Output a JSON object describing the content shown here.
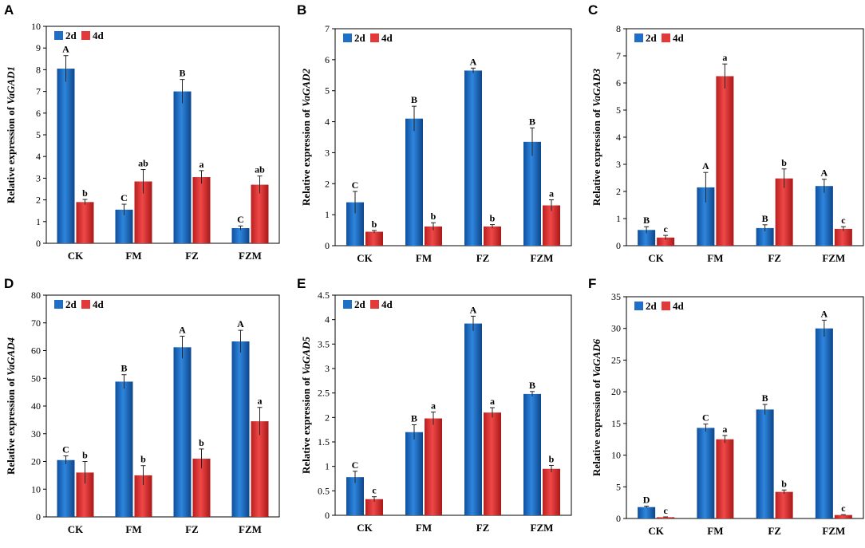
{
  "colors": {
    "series1": "#1f6fc4",
    "series2": "#e23a3a"
  },
  "chart_data": [
    {
      "type": "bar",
      "panel": "A",
      "ylabel_prefix": "Relative expression of ",
      "ylabel_gene": "VaGAD1",
      "ylim": [
        0,
        10
      ],
      "yticks": [
        "0",
        "1",
        "2",
        "3",
        "4",
        "5",
        "6",
        "7",
        "8",
        "9",
        "10"
      ],
      "categories": [
        "CK",
        "FM",
        "FZ",
        "FZM"
      ],
      "series": [
        {
          "name": "2d",
          "values": [
            8.05,
            1.55,
            7.0,
            0.7
          ],
          "errors": [
            0.6,
            0.25,
            0.55,
            0.1
          ],
          "labels": [
            "A",
            "C",
            "B",
            "C"
          ]
        },
        {
          "name": "4d",
          "values": [
            1.9,
            2.85,
            3.05,
            2.7
          ],
          "errors": [
            0.12,
            0.55,
            0.3,
            0.4
          ],
          "labels": [
            "b",
            "ab",
            "a",
            "ab"
          ]
        }
      ]
    },
    {
      "type": "bar",
      "panel": "B",
      "ylabel_prefix": "Relative expression of ",
      "ylabel_gene": "VaGAD2",
      "ylim": [
        0,
        7
      ],
      "yticks": [
        "0",
        "1",
        "2",
        "3",
        "4",
        "5",
        "6",
        "7"
      ],
      "categories": [
        "CK",
        "FM",
        "FZ",
        "FZM"
      ],
      "series": [
        {
          "name": "2d",
          "values": [
            1.4,
            4.1,
            5.65,
            3.35
          ],
          "errors": [
            0.35,
            0.4,
            0.08,
            0.45
          ],
          "labels": [
            "C",
            "B",
            "A",
            "B"
          ]
        },
        {
          "name": "4d",
          "values": [
            0.45,
            0.62,
            0.62,
            1.3
          ],
          "errors": [
            0.04,
            0.12,
            0.06,
            0.18
          ],
          "labels": [
            "b",
            "b",
            "b",
            "a"
          ]
        }
      ]
    },
    {
      "type": "bar",
      "panel": "C",
      "ylabel_prefix": "Relative expression of ",
      "ylabel_gene": "VaGAD3",
      "ylim": [
        0,
        8
      ],
      "yticks": [
        "0",
        "1",
        "2",
        "3",
        "4",
        "5",
        "6",
        "7",
        "8"
      ],
      "categories": [
        "CK",
        "FM",
        "FZ",
        "FZM"
      ],
      "series": [
        {
          "name": "2d",
          "values": [
            0.58,
            2.15,
            0.65,
            2.2
          ],
          "errors": [
            0.12,
            0.55,
            0.12,
            0.25
          ],
          "labels": [
            "B",
            "A",
            "B",
            "A"
          ]
        },
        {
          "name": "4d",
          "values": [
            0.3,
            6.25,
            2.48,
            0.62
          ],
          "errors": [
            0.08,
            0.45,
            0.35,
            0.08
          ],
          "labels": [
            "c",
            "a",
            "b",
            "c"
          ]
        }
      ]
    },
    {
      "type": "bar",
      "panel": "D",
      "ylabel_prefix": "Relative expression of ",
      "ylabel_gene": "VaGAD4",
      "ylim": [
        0,
        80
      ],
      "yticks": [
        "0",
        "10",
        "20",
        "30",
        "40",
        "50",
        "60",
        "70",
        "80"
      ],
      "categories": [
        "CK",
        "FM",
        "FZ",
        "FZM"
      ],
      "series": [
        {
          "name": "2d",
          "values": [
            20.5,
            48.8,
            61.2,
            63.3
          ],
          "errors": [
            1.5,
            2.5,
            4.0,
            4.0
          ],
          "labels": [
            "C",
            "B",
            "A",
            "A"
          ]
        },
        {
          "name": "4d",
          "values": [
            16.0,
            15.0,
            21.0,
            34.5
          ],
          "errors": [
            4.0,
            3.5,
            3.5,
            5.0
          ],
          "labels": [
            "b",
            "b",
            "b",
            "a"
          ]
        }
      ]
    },
    {
      "type": "bar",
      "panel": "E",
      "ylabel_prefix": "Relative expression of ",
      "ylabel_gene": "VaGAD5",
      "ylim": [
        0,
        4.5
      ],
      "yticks": [
        "0",
        "0.5",
        "1",
        "1.5",
        "2",
        "2.5",
        "3",
        "3.5",
        "4",
        "4.5"
      ],
      "categories": [
        "CK",
        "FM",
        "FZ",
        "FZM"
      ],
      "series": [
        {
          "name": "2d",
          "values": [
            0.78,
            1.7,
            3.92,
            2.48
          ],
          "errors": [
            0.12,
            0.15,
            0.15,
            0.05
          ],
          "labels": [
            "C",
            "B",
            "A",
            "B"
          ]
        },
        {
          "name": "4d",
          "values": [
            0.33,
            1.98,
            2.1,
            0.95
          ],
          "errors": [
            0.05,
            0.13,
            0.1,
            0.07
          ],
          "labels": [
            "c",
            "a",
            "a",
            "b"
          ]
        }
      ]
    },
    {
      "type": "bar",
      "panel": "F",
      "ylabel_prefix": "Relative expression of ",
      "ylabel_gene": "VaGAD6",
      "ylim": [
        0,
        35
      ],
      "yticks": [
        "0",
        "5",
        "10",
        "15",
        "20",
        "25",
        "30",
        "35"
      ],
      "categories": [
        "CK",
        "FM",
        "FZ",
        "FZM"
      ],
      "series": [
        {
          "name": "2d",
          "values": [
            1.8,
            14.3,
            17.2,
            30.0
          ],
          "errors": [
            0.15,
            0.6,
            0.8,
            1.3
          ],
          "labels": [
            "D",
            "C",
            "B",
            "A"
          ]
        },
        {
          "name": "4d",
          "values": [
            0.2,
            12.5,
            4.2,
            0.55
          ],
          "errors": [
            0.05,
            0.6,
            0.3,
            0.05
          ],
          "labels": [
            "c",
            "a",
            "b",
            "c"
          ]
        }
      ]
    }
  ]
}
